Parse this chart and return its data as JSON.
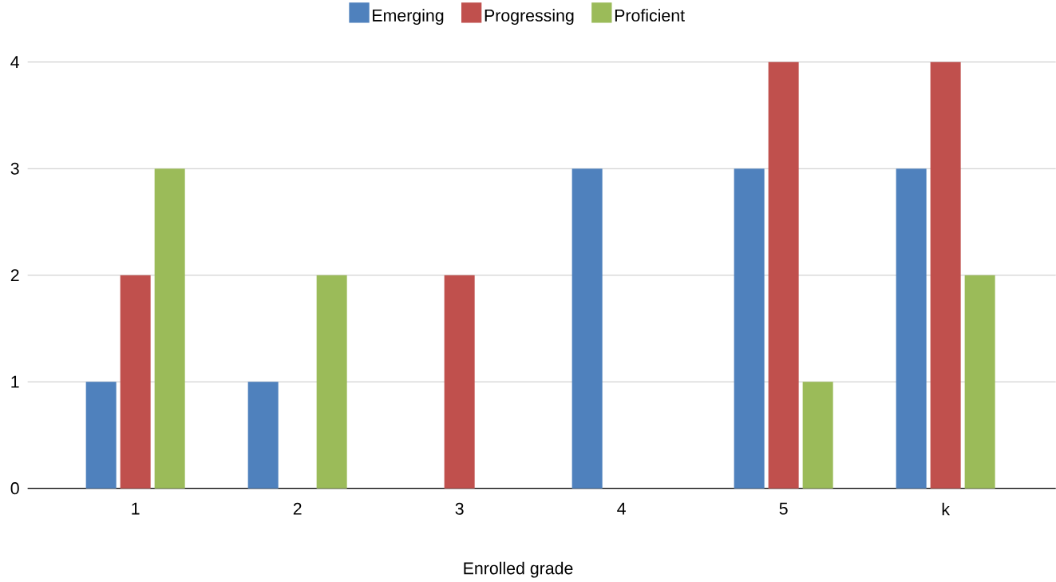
{
  "chart_data": {
    "type": "bar",
    "xlabel": "Enrolled grade",
    "categories": [
      "1",
      "2",
      "3",
      "4",
      "5",
      "k"
    ],
    "series": [
      {
        "name": "Emerging",
        "color": "#4f81bd",
        "values": [
          1,
          1,
          0,
          3,
          3,
          3
        ]
      },
      {
        "name": "Progressing",
        "color": "#c0504d",
        "values": [
          2,
          0,
          2,
          0,
          4,
          4
        ]
      },
      {
        "name": "Proficient",
        "color": "#9bbb59",
        "values": [
          3,
          2,
          0,
          0,
          1,
          2
        ]
      }
    ],
    "ylim": [
      0,
      4
    ],
    "yticks": [
      0,
      1,
      2,
      3,
      4
    ],
    "grid": "y",
    "legend": "top"
  }
}
